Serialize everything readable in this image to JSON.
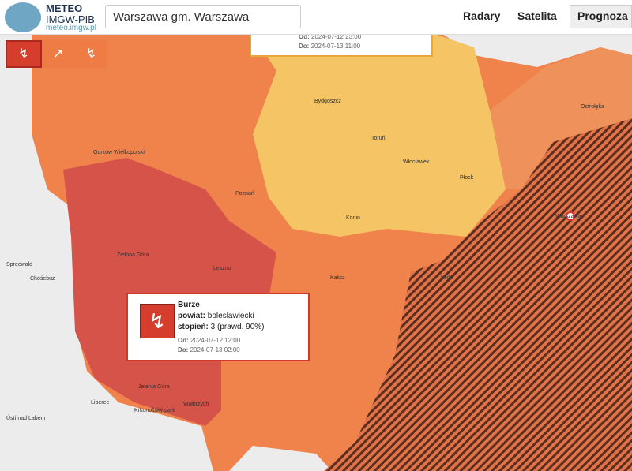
{
  "header": {
    "logo_title": "METEO",
    "logo_subtitle": "IMGW-PIB",
    "logo_url": "meteo.imgw.pl",
    "search": "Warszawa gm. Warszawa",
    "nav": [
      "Radary",
      "Satelita",
      "Prognoza"
    ]
  },
  "top_popup": {
    "from_label": "Od:",
    "from": "2024-07-12 23:00",
    "to_label": "Do:",
    "to": "2024-07-13 11:00"
  },
  "popup": {
    "title": "Burze",
    "fields": [
      {
        "label": "powiat:",
        "value": "bolesławiecki"
      },
      {
        "label": "stopień:",
        "value": "3 (prawd. 90%)"
      }
    ],
    "from_label": "Od:",
    "from": "2024-07-12 12:00",
    "to_label": "Do:",
    "to": "2024-07-13 02:00"
  },
  "map": {
    "labels": [
      "Gorzów Wielkopolski",
      "Bydgoszcz",
      "Toruń",
      "Włocławek",
      "Płock",
      "Poznań",
      "Konin",
      "Warszawa",
      "Ostrołęka",
      "Zielona Góra",
      "Leszno",
      "Kalisz",
      "Łódź",
      "Jelenia Góra",
      "Wałbrzych",
      "Liberec",
      "Spreewald",
      "Chóśebuz",
      "Ústí nad Labem",
      "Krkonošský park"
    ]
  }
}
